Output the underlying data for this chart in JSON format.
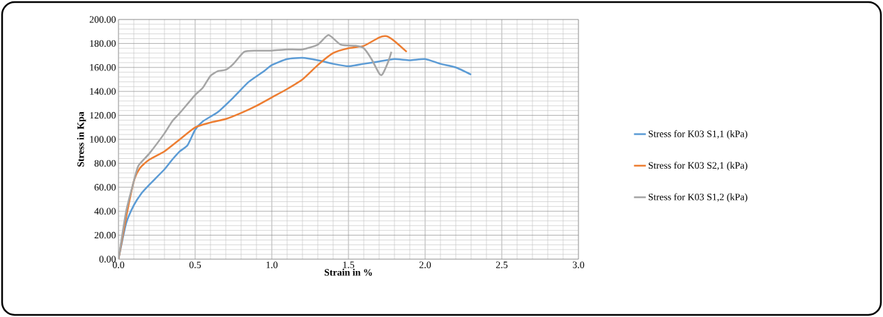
{
  "chart_data": {
    "type": "line",
    "xlabel": "Strain in %",
    "ylabel": "Stress in Kpa",
    "xlim": [
      0,
      3
    ],
    "ylim": [
      0,
      200
    ],
    "xticks": [
      {
        "value": 0,
        "label": "0.0"
      },
      {
        "value": 0.5,
        "label": "0.5"
      },
      {
        "value": 1,
        "label": "1.0"
      },
      {
        "value": 1.5,
        "label": "1.5"
      },
      {
        "value": 2,
        "label": "2.0"
      },
      {
        "value": 2.5,
        "label": "2.5"
      },
      {
        "value": 3,
        "label": "3.0"
      }
    ],
    "yticks": [
      {
        "value": 0,
        "label": "0.00"
      },
      {
        "value": 20,
        "label": "20.00"
      },
      {
        "value": 40,
        "label": "40.00"
      },
      {
        "value": 60,
        "label": "60.00"
      },
      {
        "value": 80,
        "label": "80.00"
      },
      {
        "value": 100,
        "label": "100.00"
      },
      {
        "value": 120,
        "label": "120.00"
      },
      {
        "value": 140,
        "label": "140.00"
      },
      {
        "value": 160,
        "label": "160.00"
      },
      {
        "value": 180,
        "label": "180.00"
      },
      {
        "value": 200,
        "label": "200.00"
      }
    ],
    "grid": true,
    "legend": "right",
    "marker": "none",
    "line_style": "solid",
    "series": [
      {
        "name": "Stress for K03 S1,1 (kPa)",
        "color": "#5b9bd5",
        "x": [
          0,
          0.05,
          0.1,
          0.15,
          0.2,
          0.3,
          0.35,
          0.4,
          0.45,
          0.5,
          0.55,
          0.65,
          0.75,
          0.85,
          0.95,
          1.0,
          1.1,
          1.2,
          1.3,
          1.4,
          1.5,
          1.6,
          1.7,
          1.8,
          1.9,
          2.0,
          2.1,
          2.2,
          2.3
        ],
        "values": [
          0,
          30,
          45,
          55,
          62,
          75,
          83,
          90,
          95,
          108,
          115,
          123,
          135,
          148,
          157,
          162,
          167,
          168,
          166,
          163,
          161,
          163,
          165,
          167,
          166,
          167,
          163,
          160,
          154
        ]
      },
      {
        "name": "Stress for K03 S2,1 (kPa)",
        "color": "#ed7d31",
        "x": [
          0,
          0.05,
          0.1,
          0.14,
          0.2,
          0.3,
          0.4,
          0.5,
          0.6,
          0.7,
          0.8,
          0.9,
          1.0,
          1.1,
          1.2,
          1.3,
          1.4,
          1.5,
          1.6,
          1.7,
          1.75,
          1.8,
          1.88
        ],
        "values": [
          0,
          35,
          65,
          76,
          83,
          90,
          100,
          110,
          114,
          117,
          122,
          128,
          135,
          142,
          150,
          162,
          172,
          176,
          178,
          185,
          186,
          182,
          173
        ]
      },
      {
        "name": "Stress for K03 S1,2 (kPa)",
        "color": "#a5a5a5",
        "x": [
          0,
          0.05,
          0.1,
          0.13,
          0.2,
          0.3,
          0.35,
          0.4,
          0.5,
          0.55,
          0.6,
          0.65,
          0.7,
          0.75,
          0.82,
          0.9,
          1.0,
          1.1,
          1.2,
          1.3,
          1.37,
          1.45,
          1.55,
          1.6,
          1.65,
          1.7,
          1.72,
          1.76,
          1.78
        ],
        "values": [
          0,
          40,
          65,
          78,
          88,
          105,
          115,
          122,
          137,
          143,
          153,
          157,
          158,
          163,
          173,
          174,
          174,
          175,
          175,
          179,
          187,
          179,
          178,
          176,
          167,
          155,
          154,
          165,
          173
        ]
      }
    ]
  }
}
